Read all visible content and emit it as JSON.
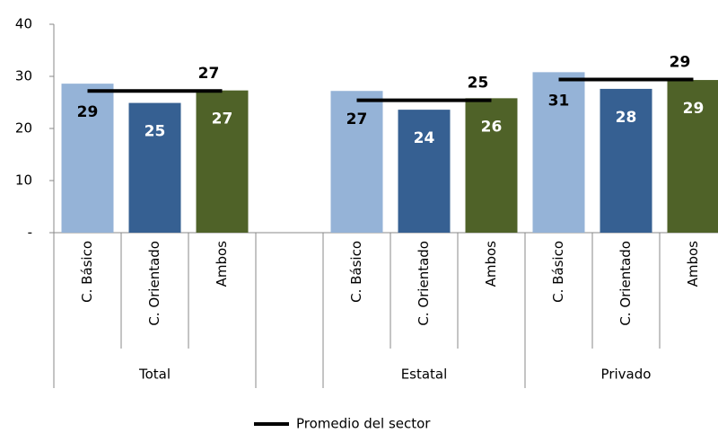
{
  "chart_data": {
    "type": "grouped_bar",
    "colors": [
      "#95b3d7",
      "#366092",
      "#4f6228"
    ],
    "label_colors": [
      "#000000",
      "#ffffff",
      "#ffffff"
    ],
    "groups": [
      {
        "name": "Total",
        "categories": [
          "C. Básico",
          "C. Orientado",
          "Ambos"
        ],
        "values": [
          28.6,
          24.9,
          27.3
        ],
        "value_labels": [
          "29",
          "25",
          "27"
        ],
        "average": 27.2,
        "average_label": "27"
      },
      {
        "name": null,
        "categories": [
          null
        ],
        "values": [
          null
        ],
        "value_labels": [
          null
        ],
        "average": null,
        "average_label": null
      },
      {
        "name": "Estatal",
        "categories": [
          "C. Básico",
          "C. Orientado",
          "Ambos"
        ],
        "values": [
          27.2,
          23.6,
          25.8
        ],
        "value_labels": [
          "27",
          "24",
          "26"
        ],
        "average": 25.4,
        "average_label": "25"
      },
      {
        "name": "Privado",
        "categories": [
          "C. Básico",
          "C. Orientado",
          "Ambos"
        ],
        "values": [
          30.8,
          27.6,
          29.3
        ],
        "value_labels": [
          "31",
          "28",
          "29"
        ],
        "average": 29.4,
        "average_label": "29"
      }
    ],
    "average_name": "Promedio del sector",
    "average_color": "#000000",
    "ylim": [
      0,
      40
    ],
    "yticks": [
      {
        "value": 0,
        "label": "-"
      },
      10,
      20,
      30,
      40
    ],
    "grid": false
  }
}
